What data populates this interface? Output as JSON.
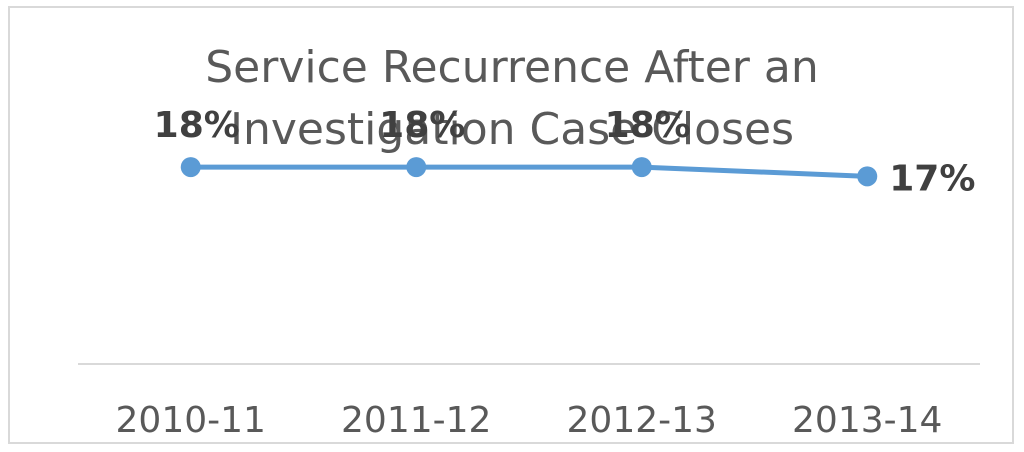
{
  "chart_data": {
    "type": "line",
    "title_lines": [
      "Service Recurrence After an",
      "Investigation Case Closes"
    ],
    "categories": [
      "2010-11",
      "2011-12",
      "2012-13",
      "2013-14"
    ],
    "series": [
      {
        "values": [
          18,
          18,
          18,
          17
        ]
      }
    ],
    "data_labels": [
      "18%",
      "18%",
      "18%",
      "17%"
    ],
    "value_unit": "%",
    "ylim": [
      0,
      22
    ],
    "grid": false,
    "legend": "none",
    "line_color": "#5b9bd5"
  }
}
